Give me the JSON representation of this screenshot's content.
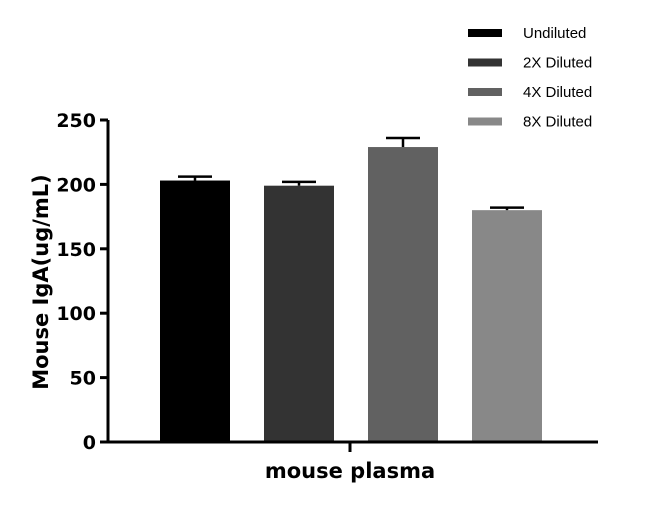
{
  "chart_data": {
    "type": "bar",
    "title": "",
    "xlabel": "mouse plasma",
    "ylabel": "Mouse IgA(ug/mL)",
    "ylim": [
      0,
      250
    ],
    "yticks": [
      "0",
      "50",
      "100",
      "150",
      "200",
      "250"
    ],
    "grid": false,
    "legend_position": "top-right",
    "series": [
      {
        "name": "Undiluted",
        "value": 203,
        "error": 3,
        "color": "#000000"
      },
      {
        "name": "2X Diluted",
        "value": 199,
        "error": 3,
        "color": "#333333"
      },
      {
        "name": "4X Diluted",
        "value": 229,
        "error": 7,
        "color": "#616161"
      },
      {
        "name": "8X Diluted",
        "value": 180,
        "error": 2,
        "color": "#888888"
      }
    ]
  }
}
